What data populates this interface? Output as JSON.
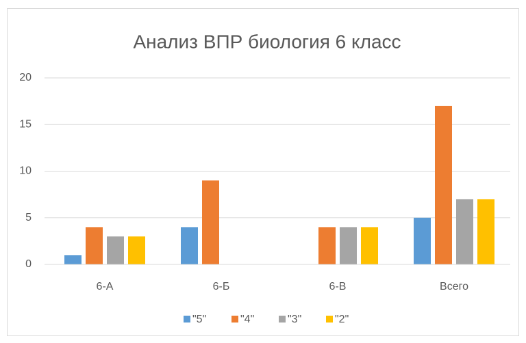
{
  "chart_data": {
    "type": "bar",
    "title": "Анализ ВПР биология 6 класс",
    "categories": [
      "6-А",
      "6-Б",
      "6-В",
      "Всего"
    ],
    "series": [
      {
        "name": "\"5\"",
        "color": "#5b9bd5",
        "values": [
          1,
          4,
          0,
          5
        ]
      },
      {
        "name": "\"4\"",
        "color": "#ed7d31",
        "values": [
          4,
          9,
          4,
          17
        ]
      },
      {
        "name": "\"3\"",
        "color": "#a5a5a5",
        "values": [
          3,
          0,
          4,
          7
        ]
      },
      {
        "name": "\"2\"",
        "color": "#ffc000",
        "values": [
          3,
          0,
          4,
          7
        ]
      }
    ],
    "ylim": [
      0,
      20
    ],
    "yticks": [
      0,
      5,
      10,
      15,
      20
    ],
    "grid": true,
    "legend": "bottom"
  }
}
